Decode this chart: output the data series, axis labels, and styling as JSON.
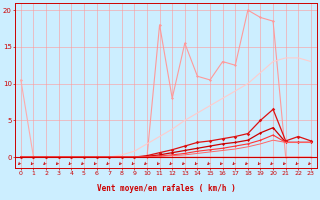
{
  "xlabel": "Vent moyen/en rafales ( km/h )",
  "xlim": [
    -0.5,
    23.5
  ],
  "ylim": [
    -1.5,
    21
  ],
  "yticks": [
    0,
    5,
    10,
    15,
    20
  ],
  "xticks": [
    0,
    1,
    2,
    3,
    4,
    5,
    6,
    7,
    8,
    9,
    10,
    11,
    12,
    13,
    14,
    15,
    16,
    17,
    18,
    19,
    20,
    21,
    22,
    23
  ],
  "bg_color": "#cceeff",
  "grid_color": "#ff9999",
  "series": [
    {
      "x": [
        0,
        1,
        2,
        3,
        4,
        5,
        6,
        7,
        8,
        9,
        10,
        11,
        12,
        13,
        14,
        15,
        16,
        17,
        18,
        19,
        20,
        21,
        22,
        23
      ],
      "y": [
        10.5,
        0,
        0,
        0,
        0,
        0,
        0,
        0,
        0,
        0,
        0,
        0,
        0,
        0,
        0,
        0,
        0,
        0,
        0,
        0,
        0,
        0,
        0,
        0
      ],
      "color": "#ffaaaa",
      "linewidth": 0.8,
      "marker": "D",
      "markersize": 1.5,
      "linestyle": "-"
    },
    {
      "x": [
        0,
        1,
        2,
        3,
        4,
        5,
        6,
        7,
        8,
        9,
        10,
        11,
        12,
        13,
        14,
        15,
        16,
        17,
        18,
        19,
        20,
        21,
        22,
        23
      ],
      "y": [
        0,
        0,
        0,
        0,
        0,
        0,
        0,
        0,
        0,
        0,
        0,
        18,
        8,
        15.5,
        11,
        10.5,
        13,
        12.5,
        20,
        19,
        18.5,
        0,
        0,
        0
      ],
      "color": "#ff9999",
      "linewidth": 0.8,
      "marker": "D",
      "markersize": 1.5,
      "linestyle": "-"
    },
    {
      "x": [
        0,
        1,
        2,
        3,
        4,
        5,
        6,
        7,
        8,
        9,
        10,
        11,
        12,
        13,
        14,
        15,
        16,
        17,
        18,
        19,
        20,
        21,
        22,
        23
      ],
      "y": [
        0,
        0,
        0,
        0,
        0,
        0,
        0,
        0,
        0.3,
        0.8,
        1.8,
        2.8,
        3.8,
        5.0,
        6.0,
        7.0,
        8.0,
        9.0,
        10.0,
        11.5,
        13.0,
        13.5,
        13.5,
        13.0
      ],
      "color": "#ffcccc",
      "linewidth": 0.8,
      "marker": null,
      "markersize": 0,
      "linestyle": "-"
    },
    {
      "x": [
        0,
        1,
        2,
        3,
        4,
        5,
        6,
        7,
        8,
        9,
        10,
        11,
        12,
        13,
        14,
        15,
        16,
        17,
        18,
        19,
        20,
        21,
        22,
        23
      ],
      "y": [
        0,
        0,
        0,
        0,
        0,
        0,
        0,
        0,
        0,
        0,
        0.2,
        0.6,
        1.0,
        1.5,
        2.0,
        2.2,
        2.5,
        2.8,
        3.2,
        5.0,
        6.5,
        2.2,
        2.8,
        2.2
      ],
      "color": "#dd1111",
      "linewidth": 0.9,
      "marker": "D",
      "markersize": 1.8,
      "linestyle": "-"
    },
    {
      "x": [
        0,
        1,
        2,
        3,
        4,
        5,
        6,
        7,
        8,
        9,
        10,
        11,
        12,
        13,
        14,
        15,
        16,
        17,
        18,
        19,
        20,
        21,
        22,
        23
      ],
      "y": [
        0,
        0,
        0,
        0,
        0,
        0,
        0,
        0,
        0,
        0,
        0.1,
        0.3,
        0.6,
        0.9,
        1.2,
        1.5,
        1.8,
        2.0,
        2.3,
        3.3,
        4.0,
        2.0,
        2.0,
        2.0
      ],
      "color": "#cc0000",
      "linewidth": 0.9,
      "marker": "D",
      "markersize": 1.5,
      "linestyle": "-"
    },
    {
      "x": [
        0,
        1,
        2,
        3,
        4,
        5,
        6,
        7,
        8,
        9,
        10,
        11,
        12,
        13,
        14,
        15,
        16,
        17,
        18,
        19,
        20,
        21,
        22,
        23
      ],
      "y": [
        0,
        0,
        0,
        0,
        0,
        0,
        0,
        0,
        0,
        0,
        0.05,
        0.15,
        0.3,
        0.5,
        0.8,
        1.0,
        1.2,
        1.5,
        1.8,
        2.3,
        3.0,
        2.0,
        2.0,
        2.0
      ],
      "color": "#ff3333",
      "linewidth": 0.8,
      "marker": "D",
      "markersize": 1.2,
      "linestyle": "-"
    },
    {
      "x": [
        0,
        1,
        2,
        3,
        4,
        5,
        6,
        7,
        8,
        9,
        10,
        11,
        12,
        13,
        14,
        15,
        16,
        17,
        18,
        19,
        20,
        21,
        22,
        23
      ],
      "y": [
        0,
        0,
        0,
        0,
        0,
        0,
        0,
        0,
        0,
        0,
        0,
        0.1,
        0.2,
        0.3,
        0.5,
        0.7,
        0.9,
        1.1,
        1.4,
        1.8,
        2.3,
        2.0,
        2.0,
        2.0
      ],
      "color": "#ff6666",
      "linewidth": 0.7,
      "marker": null,
      "markersize": 0,
      "linestyle": "-"
    }
  ],
  "arrow_color": "#cc0000",
  "figsize": [
    3.2,
    2.0
  ],
  "dpi": 100
}
